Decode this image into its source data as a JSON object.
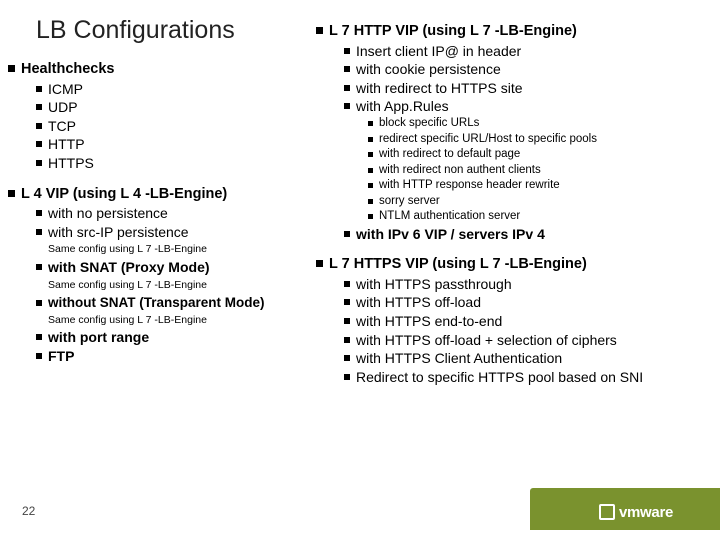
{
  "title": "LB Configurations",
  "page_number": "22",
  "logo_text": "vmware",
  "colors": {
    "accent_bg": "#7a922e",
    "text": "#000000",
    "page_bg": "#ffffff"
  },
  "left": {
    "s1": {
      "h": "Healthchecks",
      "i": [
        "ICMP",
        "UDP",
        "TCP",
        "HTTP",
        "HTTPS"
      ]
    },
    "s2": {
      "h": "L 4 VIP (using L 4 -LB-Engine)",
      "i1": "with no persistence",
      "i2": "with src-IP persistence",
      "n1": "Same config using L 7 -LB-Engine",
      "i3": "with SNAT (Proxy Mode)",
      "n2": "Same config using L 7 -LB-Engine",
      "i4": "without SNAT (Transparent Mode)",
      "n3": "Same config using L 7 -LB-Engine",
      "i5": "with port range",
      "i6": "FTP"
    }
  },
  "right": {
    "s1": {
      "h": "L 7 HTTP VIP (using L 7 -LB-Engine)",
      "i1": "Insert client IP@ in header",
      "i2": "with cookie persistence",
      "i3": "with redirect to HTTPS site",
      "i4": "with App.Rules",
      "sub": [
        "block specific URLs",
        "redirect specific URL/Host to specific pools",
        "with redirect to default page",
        "with redirect non authent clients",
        "with HTTP response header rewrite",
        "sorry server",
        "NTLM authentication server"
      ],
      "i5": "with IPv 6 VIP / servers IPv 4"
    },
    "s2": {
      "h": "L 7 HTTPS VIP (using L 7 -LB-Engine)",
      "i": [
        "with HTTPS passthrough",
        "with HTTPS off-load",
        "with HTTPS end-to-end",
        "with HTTPS off-load + selection of ciphers",
        "with HTTPS Client Authentication",
        "Redirect to specific HTTPS pool based on SNI"
      ]
    }
  }
}
